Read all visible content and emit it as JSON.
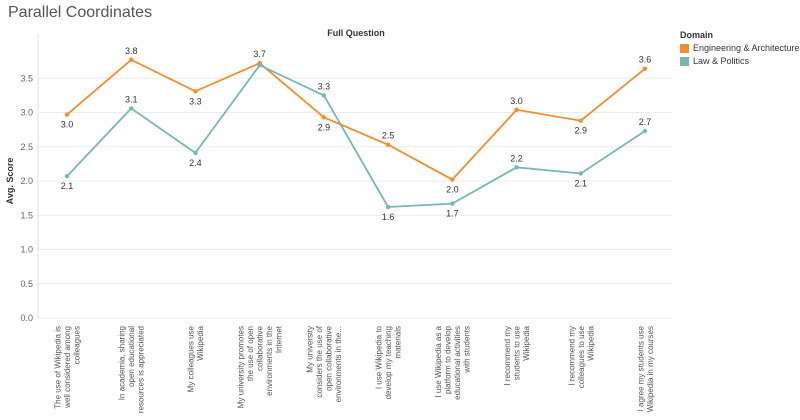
{
  "page": {
    "title": "Parallel Coordinates"
  },
  "chart_data": {
    "type": "line",
    "title": "Full Question",
    "ylabel": "Avg. Score",
    "ylim": [
      0,
      4
    ],
    "yticks": [
      "0.0",
      "0.5",
      "1.0",
      "1.5",
      "2.0",
      "2.5",
      "3.0",
      "3.5"
    ],
    "grid": true,
    "legend_title": "Domain",
    "legend_position": "top-right",
    "categories": [
      [
        "The use of Wikipedia is",
        "well considered among",
        "colleagues"
      ],
      [
        "In academia, sharing",
        "open educational",
        "resources is appreciated"
      ],
      [
        "My colleagues use",
        "Wikipedia"
      ],
      [
        "My university promotes",
        "the use of open",
        "collaborative",
        "environments in the",
        "Internet"
      ],
      [
        "My university",
        "considers the use of",
        "open collaborative",
        "environments in the..."
      ],
      [
        "I use Wikipedia to",
        "develop my teaching",
        "materials"
      ],
      [
        "I use Wikipedia as a",
        "platform to develop",
        "educational activities",
        "with students"
      ],
      [
        "I recommend my",
        "students to use",
        "Wikipedia"
      ],
      [
        "I recommend my",
        "colleagues to use",
        "Wikipedia"
      ],
      [
        "I agree my students use",
        "Wikipedia in my courses"
      ]
    ],
    "series": [
      {
        "name": "Engineering & Architecture",
        "color": "#f28e2b",
        "values": [
          2.97,
          3.77,
          3.31,
          3.72,
          2.93,
          2.53,
          2.02,
          3.04,
          2.88,
          3.64
        ],
        "labels": [
          "3.0",
          "3.8",
          "3.3",
          "3.7",
          "2.9",
          "2.5",
          "2.0",
          "3.0",
          "2.9",
          "3.6"
        ],
        "label_pos": [
          "below",
          "above",
          "below",
          "above",
          "below",
          "above",
          "below",
          "above",
          "below",
          "above"
        ]
      },
      {
        "name": "Law & Politics",
        "color": "#76b7b2",
        "values": [
          2.07,
          3.06,
          2.41,
          3.69,
          3.25,
          1.62,
          1.67,
          2.2,
          2.11,
          2.73
        ],
        "labels": [
          "2.1",
          "3.1",
          "2.4",
          "3.7",
          "3.3",
          "1.6",
          "1.7",
          "2.2",
          "2.1",
          "2.7"
        ],
        "label_pos": [
          "below",
          "above",
          "below",
          "none",
          "above",
          "below",
          "below",
          "above",
          "below",
          "above"
        ]
      }
    ]
  }
}
